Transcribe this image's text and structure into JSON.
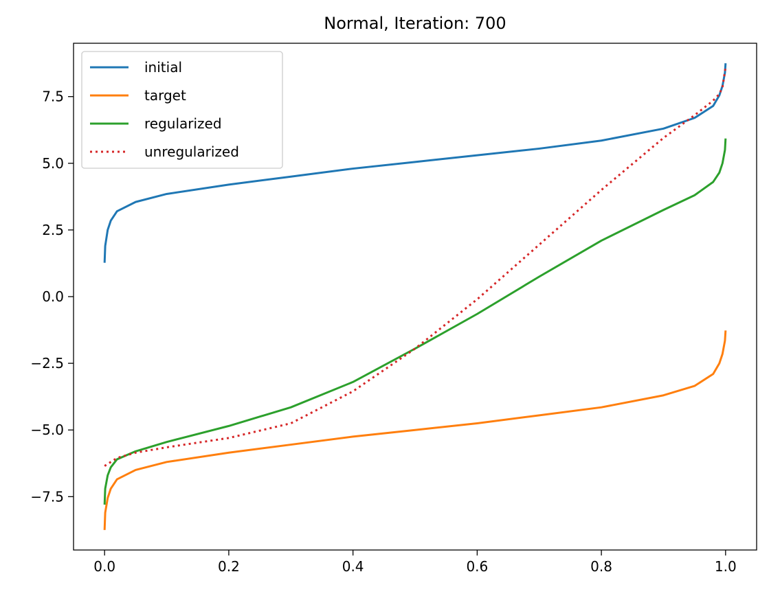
{
  "chart_data": {
    "type": "line",
    "title": "Normal, Iteration: 700",
    "xlabel": "",
    "ylabel": "",
    "xlim": [
      -0.05,
      1.05
    ],
    "ylim": [
      -9.5,
      9.5
    ],
    "grid": false,
    "legend_position": "top-left",
    "x_ticks": [
      0.0,
      0.2,
      0.4,
      0.6,
      0.8,
      1.0
    ],
    "x_tick_labels": [
      "0.0",
      "0.2",
      "0.4",
      "0.6",
      "0.8",
      "1.0"
    ],
    "y_ticks": [
      -7.5,
      -5.0,
      -2.5,
      0.0,
      2.5,
      5.0,
      7.5
    ],
    "y_tick_labels": [
      "−7.5",
      "−5.0",
      "−2.5",
      "0.0",
      "2.5",
      "5.0",
      "7.5"
    ],
    "series": [
      {
        "name": "initial",
        "color": "#1f77b4",
        "style": "solid",
        "x": [
          0.0,
          0.001,
          0.005,
          0.01,
          0.02,
          0.05,
          0.1,
          0.2,
          0.3,
          0.4,
          0.5,
          0.6,
          0.7,
          0.8,
          0.9,
          0.95,
          0.98,
          0.99,
          0.995,
          0.999,
          1.0
        ],
        "y": [
          1.27,
          1.9,
          2.5,
          2.85,
          3.2,
          3.55,
          3.85,
          4.2,
          4.5,
          4.8,
          5.05,
          5.3,
          5.55,
          5.85,
          6.3,
          6.7,
          7.15,
          7.55,
          7.9,
          8.4,
          8.75
        ]
      },
      {
        "name": "target",
        "color": "#ff7f0e",
        "style": "solid",
        "x": [
          0.0,
          0.001,
          0.005,
          0.01,
          0.02,
          0.05,
          0.1,
          0.2,
          0.3,
          0.4,
          0.5,
          0.6,
          0.7,
          0.8,
          0.9,
          0.95,
          0.98,
          0.99,
          0.995,
          0.999,
          1.0
        ],
        "y": [
          -8.75,
          -8.1,
          -7.55,
          -7.2,
          -6.85,
          -6.5,
          -6.2,
          -5.85,
          -5.55,
          -5.25,
          -5.0,
          -4.75,
          -4.45,
          -4.15,
          -3.7,
          -3.35,
          -2.9,
          -2.5,
          -2.15,
          -1.65,
          -1.27
        ]
      },
      {
        "name": "regularized",
        "color": "#2ca02c",
        "style": "solid",
        "x": [
          0.0,
          0.001,
          0.005,
          0.01,
          0.02,
          0.05,
          0.1,
          0.2,
          0.3,
          0.4,
          0.5,
          0.6,
          0.7,
          0.8,
          0.9,
          0.95,
          0.98,
          0.99,
          0.995,
          0.999,
          1.0
        ],
        "y": [
          -7.8,
          -7.2,
          -6.7,
          -6.4,
          -6.1,
          -5.8,
          -5.45,
          -4.85,
          -4.15,
          -3.2,
          -1.95,
          -0.65,
          0.75,
          2.1,
          3.25,
          3.8,
          4.3,
          4.65,
          5.0,
          5.5,
          5.93
        ]
      },
      {
        "name": "unregularized",
        "color": "#d62728",
        "style": "dotted",
        "x": [
          0.0,
          0.01,
          0.02,
          0.05,
          0.1,
          0.2,
          0.3,
          0.4,
          0.5,
          0.6,
          0.7,
          0.8,
          0.9,
          0.95,
          0.98,
          0.99,
          0.995,
          1.0
        ],
        "y": [
          -6.35,
          -6.2,
          -6.05,
          -5.85,
          -5.65,
          -5.3,
          -4.75,
          -3.55,
          -1.95,
          -0.1,
          1.95,
          4.0,
          5.95,
          6.8,
          7.35,
          7.6,
          7.85,
          8.6
        ]
      }
    ]
  }
}
